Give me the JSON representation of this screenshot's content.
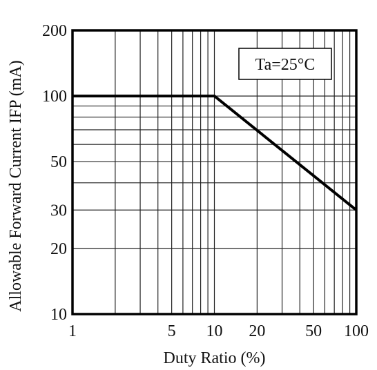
{
  "chart_data": {
    "type": "line",
    "x_scale": "log",
    "y_scale": "log",
    "xlim": [
      1,
      100
    ],
    "ylim": [
      10,
      200
    ],
    "xlabel": "Duty Ratio (%)",
    "ylabel": "Allowable Forward Current IFP (mA)",
    "x_ticks": [
      1,
      2,
      3,
      4,
      5,
      6,
      7,
      8,
      9,
      10,
      20,
      30,
      40,
      50,
      60,
      70,
      80,
      90,
      100
    ],
    "x_tick_labels": [
      {
        "value": 1,
        "label": "1"
      },
      {
        "value": 5,
        "label": "5"
      },
      {
        "value": 10,
        "label": "10"
      },
      {
        "value": 20,
        "label": "20"
      },
      {
        "value": 50,
        "label": "50"
      },
      {
        "value": 100,
        "label": "100"
      }
    ],
    "y_ticks": [
      10,
      20,
      30,
      40,
      50,
      60,
      70,
      80,
      90,
      100,
      200
    ],
    "y_tick_labels": [
      {
        "value": 10,
        "label": "10"
      },
      {
        "value": 20,
        "label": "20"
      },
      {
        "value": 30,
        "label": "30"
      },
      {
        "value": 50,
        "label": "50"
      },
      {
        "value": 100,
        "label": "100"
      },
      {
        "value": 200,
        "label": "200"
      }
    ],
    "grid": true,
    "series": [
      {
        "x": [
          1,
          10,
          100
        ],
        "y": [
          100,
          100,
          30
        ]
      }
    ],
    "annotations": [
      {
        "text": "Ta=25°C",
        "position": "top-right",
        "boxed": true
      }
    ]
  }
}
